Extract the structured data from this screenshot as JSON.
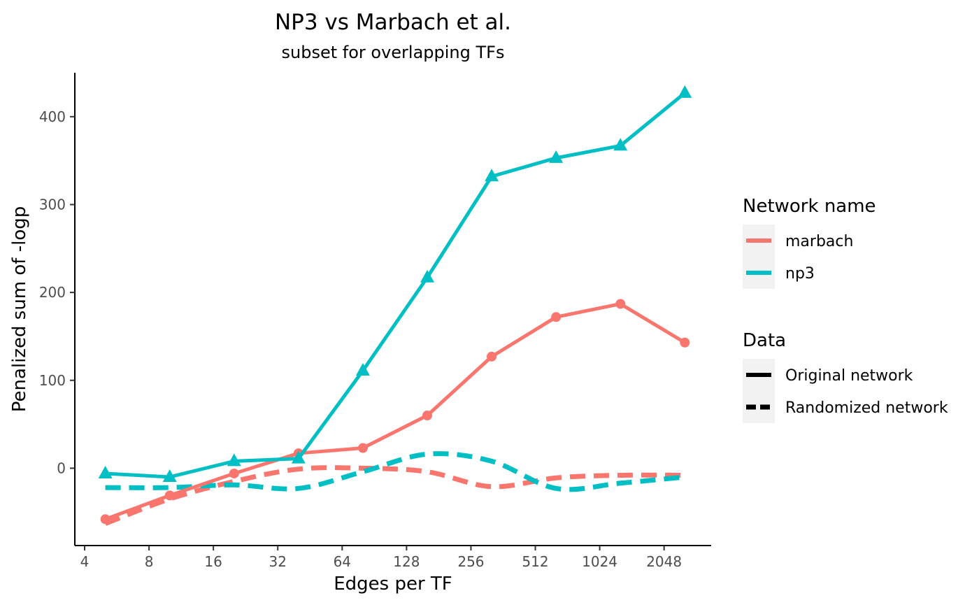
{
  "chart_data": {
    "type": "line",
    "title": "NP3 vs Marbach et al.",
    "subtitle": "subset for overlapping TFs",
    "xlabel": "Edges per TF",
    "ylabel": "Penalized sum of -logp",
    "x_scale": "log2",
    "x_ticks": [
      4,
      8,
      16,
      32,
      64,
      128,
      256,
      512,
      1024,
      2048
    ],
    "x_tick_labels": [
      "4",
      "8",
      "16",
      "32",
      "64",
      "128",
      "256",
      "512",
      "1024",
      "2048"
    ],
    "y_ticks": [
      0,
      100,
      200,
      300,
      400
    ],
    "y_tick_labels": [
      "0",
      "100",
      "200",
      "300",
      "400"
    ],
    "xlim": [
      3.6,
      3400
    ],
    "ylim": [
      -88,
      450
    ],
    "grid": false,
    "x": [
      5,
      10,
      20,
      40,
      80,
      160,
      320,
      640,
      1280,
      2560
    ],
    "series": [
      {
        "name": "marbach",
        "data": "Original network",
        "marker": "circle",
        "color": "#F8766D",
        "values": [
          -58,
          -31,
          -6,
          17,
          23,
          60,
          127,
          172,
          187,
          143
        ]
      },
      {
        "name": "np3",
        "data": "Original network",
        "marker": "triangle",
        "color": "#00BFC4",
        "values": [
          -6,
          -10,
          8,
          11,
          111,
          217,
          332,
          353,
          367,
          427
        ]
      },
      {
        "name": "marbach",
        "data": "Randomized network",
        "marker": "none",
        "color": "#F8766D",
        "values": [
          -63,
          -35,
          -15,
          -1,
          0,
          -4,
          -21,
          -11,
          -8,
          -8
        ]
      },
      {
        "name": "np3",
        "data": "Randomized network",
        "marker": "none",
        "color": "#00BFC4",
        "values": [
          -22,
          -22,
          -19,
          -23,
          -4,
          16,
          8,
          -23,
          -17,
          -10
        ]
      }
    ],
    "legend": {
      "placement": "right",
      "groups": [
        {
          "title": "Network name",
          "items": [
            {
              "label": "marbach",
              "color": "#F8766D",
              "dash": "solid"
            },
            {
              "label": "np3",
              "color": "#00BFC4",
              "dash": "solid"
            }
          ]
        },
        {
          "title": "Data",
          "items": [
            {
              "label": "Original network",
              "color": "#000000",
              "dash": "solid"
            },
            {
              "label": "Randomized network",
              "color": "#000000",
              "dash": "dashed"
            }
          ]
        }
      ]
    }
  }
}
